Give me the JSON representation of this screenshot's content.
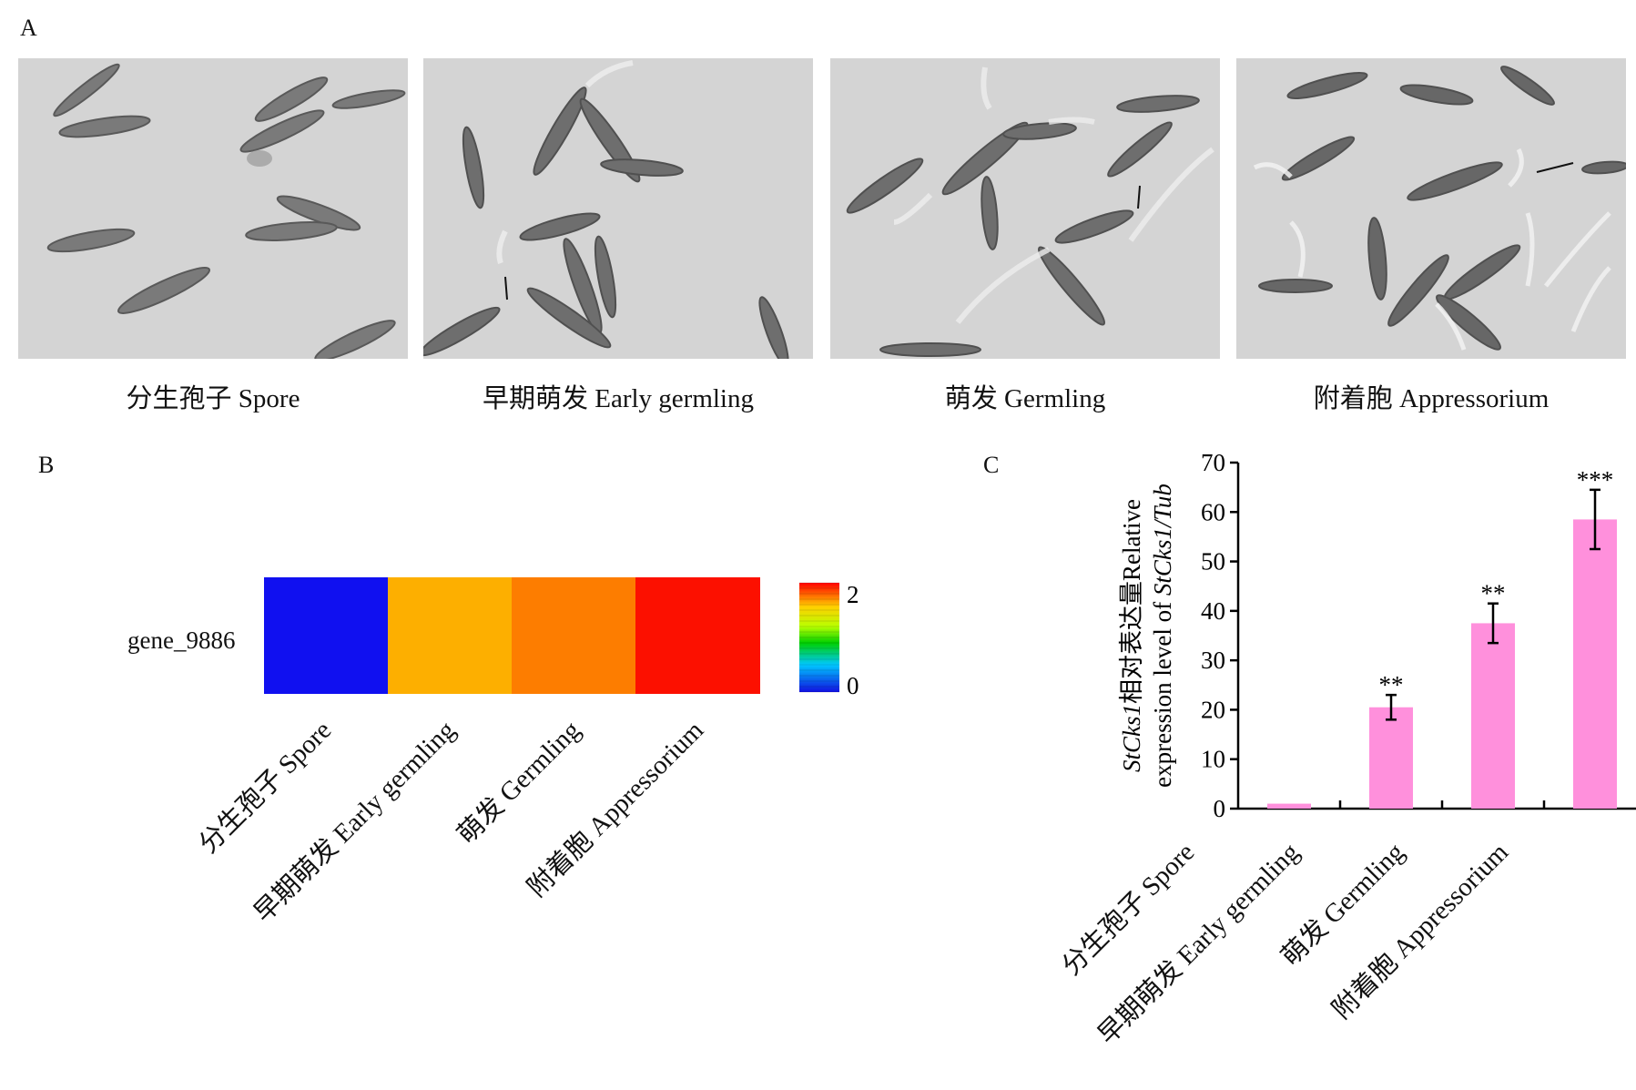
{
  "panelA": {
    "label": "A",
    "images": [
      {
        "caption": "分生孢子 Spore"
      },
      {
        "caption": "早期萌发 Early germling"
      },
      {
        "caption": "萌发 Germling"
      },
      {
        "caption": "附着胞 Appressorium"
      }
    ]
  },
  "panelB": {
    "label": "B",
    "gene": "gene_9886",
    "columns": [
      "分生孢子 Spore",
      "早期萌发 Early germling",
      "萌发 Germling",
      "附着胞 Appressorium"
    ],
    "cell_colors": [
      "#1010f0",
      "#fdaf00",
      "#fd7d00",
      "#fc1000"
    ],
    "colorbar": {
      "max_label": "2",
      "min_label": "0",
      "max": 2,
      "min": 0
    }
  },
  "panelC": {
    "label": "C",
    "chart_data": {
      "type": "bar",
      "categories": [
        "分生孢子 Spore",
        "早期萌发 Early germling",
        "萌发 Germling",
        "附着胞 Appressorium"
      ],
      "values": [
        1,
        20.5,
        37.5,
        58.5
      ],
      "errors": [
        0,
        2.5,
        4,
        6
      ],
      "significance": [
        "",
        "**",
        "**",
        "***"
      ],
      "ylabel_line1_italic": "StCks1",
      "ylabel_line1_rest": "相对表达量Relative",
      "ylabel_line2_start": "expression level of ",
      "ylabel_line2_italic": "StCks1/Tub",
      "ylim": [
        0,
        70
      ],
      "yticks": [
        0,
        10,
        20,
        30,
        40,
        50,
        60,
        70
      ],
      "bar_color": "#ff90dc"
    }
  }
}
